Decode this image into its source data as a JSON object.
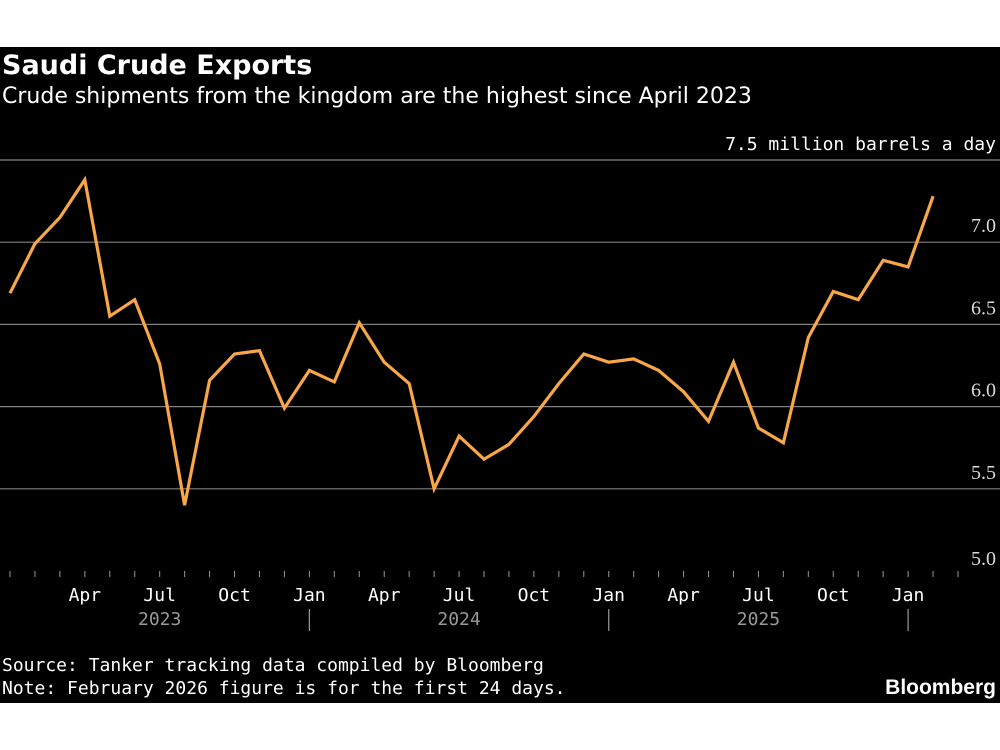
{
  "chart_data": {
    "type": "line",
    "title": "Saudi Crude Exports",
    "subtitle": "Crude shipments from the kingdom are the highest since April 2023",
    "ylabel": "million barrels a day",
    "xlabel": "",
    "ylim": [
      5.0,
      7.5
    ],
    "yticks": [
      {
        "value": 5.0,
        "label": "5.0"
      },
      {
        "value": 5.5,
        "label": "5.5"
      },
      {
        "value": 6.0,
        "label": "6.0"
      },
      {
        "value": 6.5,
        "label": "6.5"
      },
      {
        "value": 7.0,
        "label": "7.0"
      },
      {
        "value": 7.5,
        "label": "7.5 million barrels a day"
      }
    ],
    "grid": true,
    "x": [
      "2023-01",
      "2023-02",
      "2023-03",
      "2023-04",
      "2023-05",
      "2023-06",
      "2023-07",
      "2023-08",
      "2023-09",
      "2023-10",
      "2023-11",
      "2023-12",
      "2024-01",
      "2024-02",
      "2024-03",
      "2024-04",
      "2024-05",
      "2024-06",
      "2024-07",
      "2024-08",
      "2024-09",
      "2024-10",
      "2024-11",
      "2024-12",
      "2025-01",
      "2025-02",
      "2025-03",
      "2025-04",
      "2025-05",
      "2025-06",
      "2025-07",
      "2025-08",
      "2025-09",
      "2025-10",
      "2025-11",
      "2025-12",
      "2026-01",
      "2026-02"
    ],
    "x_start": "2023-01",
    "x_end_axis": "2026-03",
    "month_names": [
      "Jan",
      "Feb",
      "Mar",
      "Apr",
      "May",
      "Jun",
      "Jul",
      "Aug",
      "Sep",
      "Oct",
      "Nov",
      "Dec"
    ],
    "xticks": [
      {
        "month": "2023-04",
        "label": "Apr"
      },
      {
        "month": "2023-07",
        "label": "Jul"
      },
      {
        "month": "2023-10",
        "label": "Oct"
      },
      {
        "month": "2024-01",
        "label": "Jan"
      },
      {
        "month": "2024-04",
        "label": "Apr"
      },
      {
        "month": "2024-07",
        "label": "Jul"
      },
      {
        "month": "2024-10",
        "label": "Oct"
      },
      {
        "month": "2025-01",
        "label": "Jan"
      },
      {
        "month": "2025-04",
        "label": "Apr"
      },
      {
        "month": "2025-07",
        "label": "Jul"
      },
      {
        "month": "2025-10",
        "label": "Oct"
      },
      {
        "month": "2026-01",
        "label": "Jan"
      }
    ],
    "year_labels": [
      {
        "label": "2023",
        "center_month": "2023-07"
      },
      {
        "label": "2024",
        "center_month": "2024-07"
      },
      {
        "label": "2025",
        "center_month": "2025-07"
      }
    ],
    "year_dividers": [
      "2024-01",
      "2025-01",
      "2026-01"
    ],
    "series": [
      {
        "name": "Saudi crude exports",
        "color": "#f7a648",
        "values": [
          6.69,
          6.99,
          7.15,
          7.38,
          6.55,
          6.65,
          6.26,
          5.4,
          6.16,
          6.32,
          6.34,
          5.99,
          6.22,
          6.15,
          6.51,
          6.27,
          6.14,
          5.5,
          5.82,
          5.68,
          5.77,
          5.94,
          6.14,
          6.32,
          6.27,
          6.29,
          6.22,
          6.09,
          5.91,
          6.27,
          5.87,
          5.78,
          6.42,
          6.7,
          6.65,
          6.89,
          6.85,
          7.28
        ]
      }
    ],
    "source": "Source: Tanker tracking data compiled by Bloomberg",
    "note": "Note: February 2026 figure is for the first 24 days.",
    "brand": "Bloomberg"
  }
}
